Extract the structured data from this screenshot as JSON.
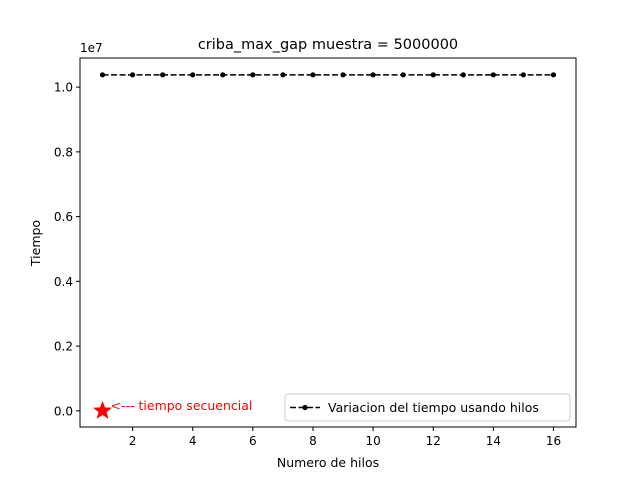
{
  "chart_data": {
    "type": "line",
    "title": "criba_max_gap muestra = 5000000",
    "xlabel": "Numero de hilos",
    "ylabel": "Tiempo",
    "y_offset_label": "1e7",
    "xlim": [
      0.25,
      16.75
    ],
    "ylim": [
      -0.05,
      1.09
    ],
    "x_ticks": [
      2,
      4,
      6,
      8,
      10,
      12,
      14,
      16
    ],
    "x_tick_labels": [
      "2",
      "4",
      "6",
      "8",
      "10",
      "12",
      "14",
      "16"
    ],
    "y_ticks": [
      0.0,
      0.2,
      0.4,
      0.6,
      0.8,
      1.0
    ],
    "y_tick_labels": [
      "0.0",
      "0.2",
      "0.4",
      "0.6",
      "0.8",
      "1.0"
    ],
    "grid": false,
    "legend_position": "lower-right",
    "series": [
      {
        "name": "Variacion del tiempo usando hilos",
        "color": "#000000",
        "style": "dashed-dot-markers",
        "x": [
          1,
          2,
          3,
          4,
          5,
          6,
          7,
          8,
          9,
          10,
          11,
          12,
          13,
          14,
          15,
          16
        ],
        "y": [
          1.038,
          1.038,
          1.038,
          1.038,
          1.038,
          1.038,
          1.038,
          1.038,
          1.038,
          1.038,
          1.038,
          1.038,
          1.038,
          1.038,
          1.038,
          1.038
        ]
      }
    ],
    "sequential_point": {
      "x": 1,
      "y": 0.0,
      "color": "#ff0000",
      "marker": "star",
      "annotation": "<--- tiempo secuencial"
    }
  }
}
